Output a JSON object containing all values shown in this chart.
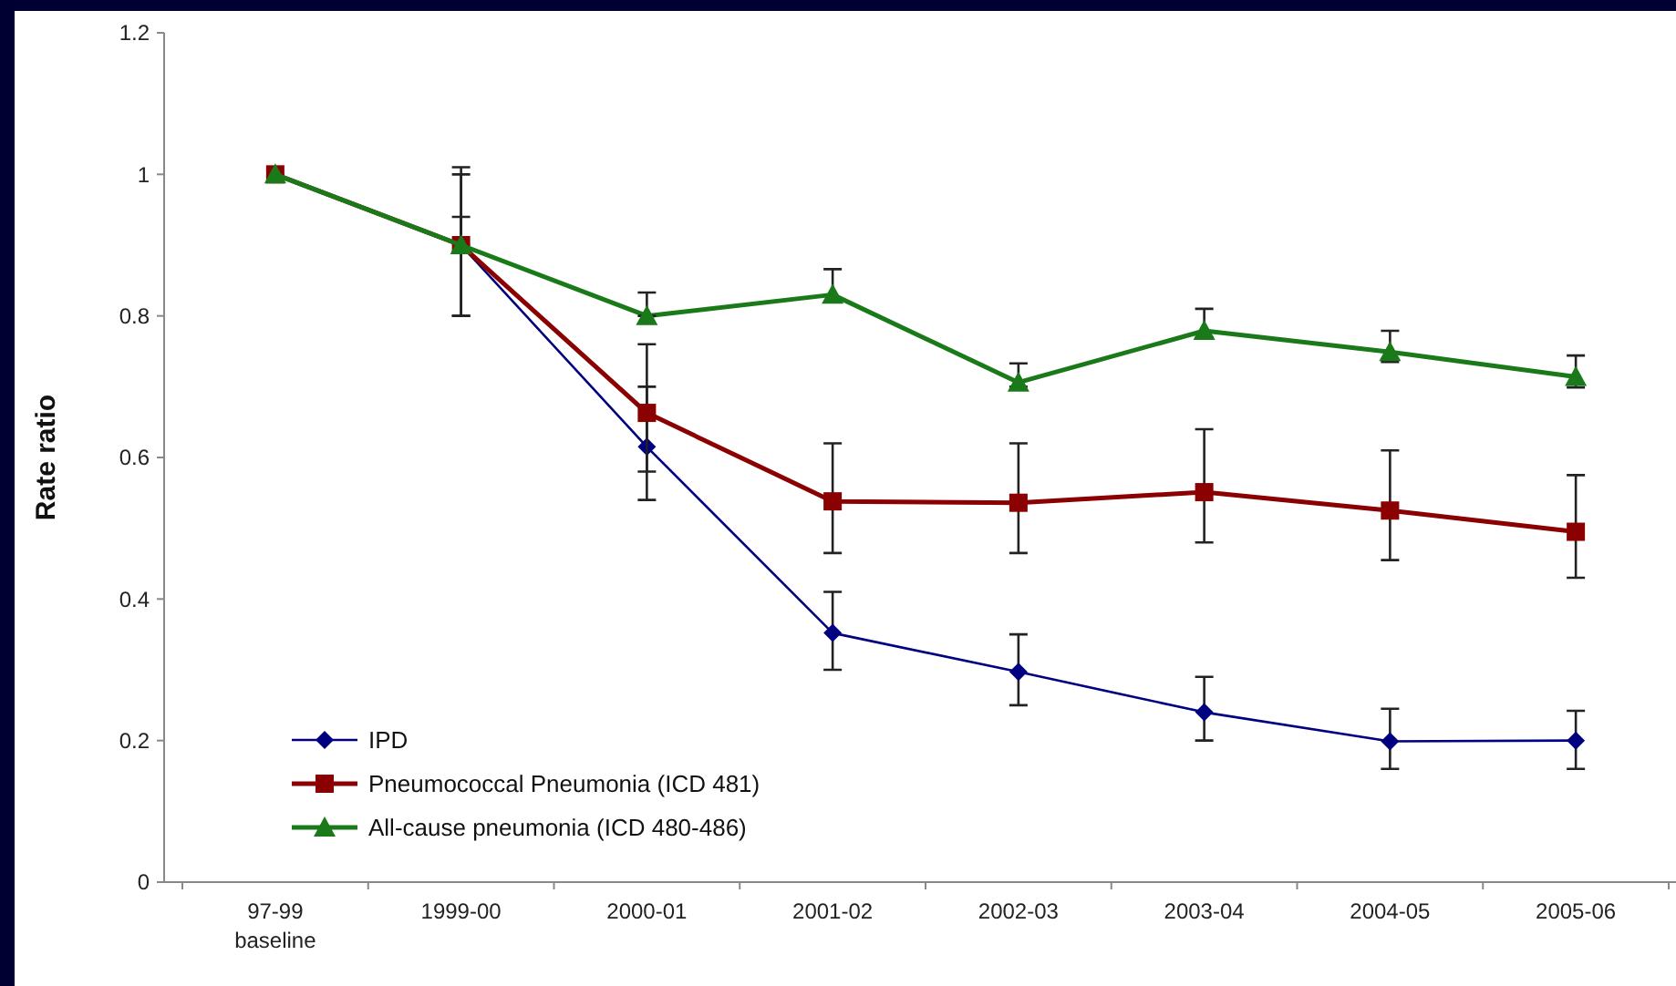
{
  "chart_data": {
    "type": "line",
    "ylabel": "Rate ratio",
    "categories": [
      "97-99\nbaseline",
      "1999-00",
      "2000-01",
      "2001-02",
      "2002-03",
      "2003-04",
      "2004-05",
      "2005-06"
    ],
    "ylim": [
      0,
      1.2
    ],
    "yticks": [
      0,
      0.2,
      0.4,
      0.6,
      0.8,
      1,
      1.2
    ],
    "grid": false,
    "legend": "bottom left",
    "series": [
      {
        "name": "IPD",
        "color": "#000080",
        "marker": "diamond",
        "values": [
          1,
          0.9,
          0.615,
          0.352,
          0.297,
          0.24,
          0.199,
          0.2
        ],
        "errors": [
          null,
          [
            0.8,
            1.01
          ],
          [
            0.54,
            0.7
          ],
          [
            0.3,
            0.41
          ],
          [
            0.25,
            0.35
          ],
          [
            0.2,
            0.29
          ],
          [
            0.16,
            0.245
          ],
          [
            0.16,
            0.242
          ]
        ]
      },
      {
        "name": "Pneumococcal Pneumonia (ICD 481)",
        "color": "#8b0000",
        "marker": "square",
        "values": [
          1,
          0.9,
          0.663,
          0.538,
          0.536,
          0.551,
          0.525,
          0.495
        ],
        "errors": [
          null,
          [
            0.8,
            1.0
          ],
          [
            0.58,
            0.76
          ],
          [
            0.465,
            0.62
          ],
          [
            0.465,
            0.62
          ],
          [
            0.48,
            0.64
          ],
          [
            0.455,
            0.61
          ],
          [
            0.43,
            0.575
          ]
        ]
      },
      {
        "name": "All-cause pneumonia (ICD 480-486)",
        "color": "#1a7a1a",
        "marker": "triangle",
        "values": [
          1,
          0.9,
          0.8,
          0.83,
          0.706,
          0.779,
          0.749,
          0.714
        ],
        "errors": [
          null,
          [
            0.89,
            0.94
          ],
          [
            0.8,
            0.833
          ],
          [
            0.82,
            0.866
          ],
          [
            0.7,
            0.733
          ],
          [
            0.77,
            0.81
          ],
          [
            0.735,
            0.779
          ],
          [
            0.699,
            0.744
          ]
        ]
      }
    ]
  }
}
